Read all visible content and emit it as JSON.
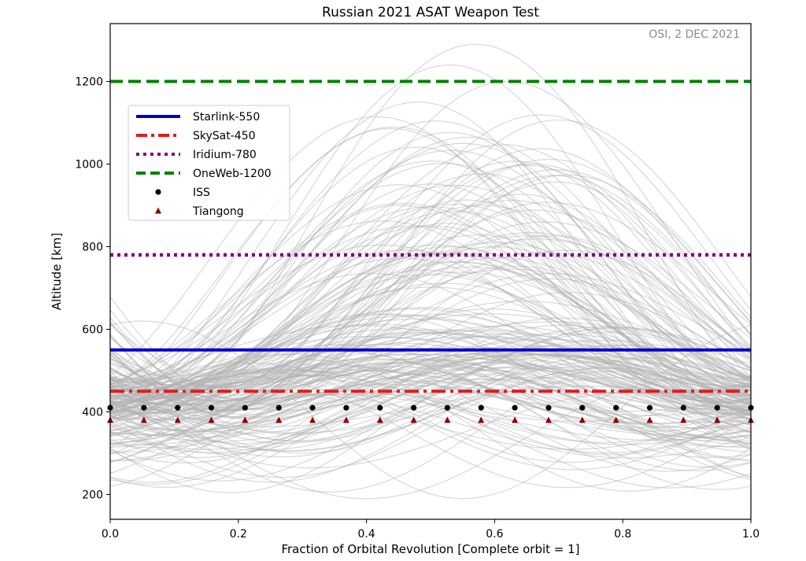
{
  "chart_data": {
    "type": "line",
    "title": "Russian 2021 ASAT Weapon Test",
    "annotation": "OSI, 2 DEC 2021",
    "xlabel": "Fraction of Orbital Revolution [Complete orbit = 1]",
    "ylabel": "Altitude [km]",
    "xlim": [
      0,
      1
    ],
    "ylim": [
      140,
      1340
    ],
    "xticks": [
      0.0,
      0.2,
      0.4,
      0.6,
      0.8,
      1.0
    ],
    "xtick_labels": [
      "0.0",
      "0.2",
      "0.4",
      "0.6",
      "0.8",
      "1.0"
    ],
    "yticks": [
      200,
      400,
      600,
      800,
      1000,
      1200
    ],
    "ytick_labels": [
      "200",
      "400",
      "600",
      "800",
      "1000",
      "1200"
    ],
    "grid": false,
    "legend_position": "upper-left",
    "reference_lines": [
      {
        "name": "Starlink-550",
        "y": 550,
        "color": "#0000cc",
        "style": "solid"
      },
      {
        "name": "SkySat-450",
        "y": 450,
        "color": "#e31a1c",
        "style": "dashdot"
      },
      {
        "name": "Iridium-780",
        "y": 780,
        "color": "#800080",
        "style": "dotted"
      },
      {
        "name": "OneWeb-1200",
        "y": 1200,
        "color": "#008000",
        "style": "dashed"
      }
    ],
    "marker_series": [
      {
        "name": "ISS",
        "y": 410,
        "marker": "circle",
        "color": "#000000",
        "x": [
          0.0,
          0.0526,
          0.1053,
          0.1579,
          0.2105,
          0.2632,
          0.3158,
          0.3684,
          0.4211,
          0.4737,
          0.5263,
          0.5789,
          0.6316,
          0.6842,
          0.7368,
          0.7895,
          0.8421,
          0.8947,
          0.9474,
          1.0
        ]
      },
      {
        "name": "Tiangong",
        "y": 380,
        "marker": "triangle",
        "color": "#8b0000",
        "x": [
          0.0,
          0.0526,
          0.1053,
          0.1579,
          0.2105,
          0.2632,
          0.3158,
          0.3684,
          0.4211,
          0.4737,
          0.5263,
          0.5789,
          0.6316,
          0.6842,
          0.7368,
          0.7895,
          0.8421,
          0.8947,
          0.9474,
          1.0
        ]
      }
    ],
    "debris": {
      "color": "#b0b0b0",
      "count": 200,
      "curves": [
        {
          "start": 480,
          "apogee": 1290,
          "perigee": 420,
          "peak_x": 0.57
        },
        {
          "start": 470,
          "apogee": 1240,
          "perigee": 430,
          "peak_x": 0.53
        },
        {
          "start": 490,
          "apogee": 1200,
          "perigee": 440,
          "peak_x": 0.62
        },
        {
          "start": 460,
          "apogee": 1150,
          "perigee": 410,
          "peak_x": 0.48
        },
        {
          "start": 500,
          "apogee": 1050,
          "perigee": 450,
          "peak_x": 0.55
        },
        {
          "start": 470,
          "apogee": 1000,
          "perigee": 400,
          "peak_x": 0.66
        },
        {
          "start": 480,
          "apogee": 950,
          "perigee": 420,
          "peak_x": 0.45
        },
        {
          "start": 490,
          "apogee": 900,
          "perigee": 440,
          "peak_x": 0.58
        },
        {
          "start": 510,
          "apogee": 850,
          "perigee": 460,
          "peak_x": 0.5
        },
        {
          "start": 450,
          "apogee": 800,
          "perigee": 380,
          "peak_x": 0.6
        },
        {
          "start": 600,
          "apogee": 620,
          "perigee": 190,
          "peak_x": 0.05
        },
        {
          "start": 240,
          "apogee": 480,
          "perigee": 190,
          "peak_x": 0.9
        },
        {
          "start": 330,
          "apogee": 520,
          "perigee": 230,
          "peak_x": 0.75
        },
        {
          "start": 400,
          "apogee": 560,
          "perigee": 300,
          "peak_x": 0.8
        }
      ]
    }
  }
}
